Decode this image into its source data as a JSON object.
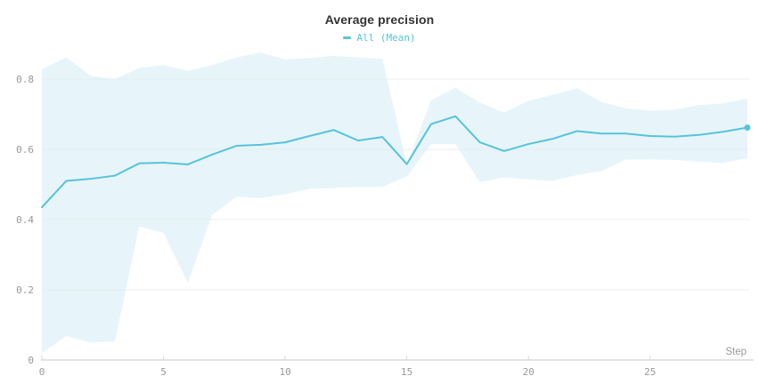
{
  "chart_data": {
    "type": "line",
    "title": "Average precision",
    "xlabel": "Step",
    "legend": [
      {
        "label": "All (Mean)"
      }
    ],
    "x": [
      0,
      1,
      2,
      3,
      4,
      5,
      6,
      7,
      8,
      9,
      10,
      11,
      12,
      13,
      14,
      15,
      16,
      17,
      18,
      19,
      20,
      21,
      22,
      23,
      24,
      25,
      26,
      27,
      28,
      29
    ],
    "series": [
      {
        "name": "All (Mean)",
        "values": [
          0.435,
          0.51,
          0.516,
          0.525,
          0.56,
          0.562,
          0.557,
          0.585,
          0.61,
          0.613,
          0.62,
          0.638,
          0.655,
          0.625,
          0.635,
          0.558,
          0.672,
          0.694,
          0.62,
          0.595,
          0.615,
          0.63,
          0.652,
          0.645,
          0.645,
          0.638,
          0.636,
          0.641,
          0.65,
          0.662
        ]
      }
    ],
    "band": {
      "name": "All (min/max range)",
      "upper": [
        0.828,
        0.862,
        0.81,
        0.8,
        0.832,
        0.84,
        0.824,
        0.84,
        0.862,
        0.876,
        0.856,
        0.86,
        0.866,
        0.862,
        0.858,
        0.557,
        0.74,
        0.776,
        0.733,
        0.705,
        0.738,
        0.756,
        0.774,
        0.735,
        0.717,
        0.71,
        0.713,
        0.726,
        0.731,
        0.745
      ],
      "lower": [
        0.02,
        0.068,
        0.05,
        0.053,
        0.38,
        0.362,
        0.22,
        0.413,
        0.465,
        0.461,
        0.472,
        0.487,
        0.49,
        0.493,
        0.493,
        0.523,
        0.615,
        0.615,
        0.506,
        0.52,
        0.515,
        0.51,
        0.527,
        0.538,
        0.571,
        0.571,
        0.57,
        0.565,
        0.561,
        0.574
      ]
    },
    "xticks": [
      {
        "value": 0,
        "label": "0"
      },
      {
        "value": 5,
        "label": "5"
      },
      {
        "value": 10,
        "label": "10"
      },
      {
        "value": 15,
        "label": "15"
      },
      {
        "value": 20,
        "label": "20"
      },
      {
        "value": 25,
        "label": "25"
      }
    ],
    "yticks": [
      {
        "value": 0,
        "label": "0"
      },
      {
        "value": 0.2,
        "label": "0.2"
      },
      {
        "value": 0.4,
        "label": "0.4"
      },
      {
        "value": 0.6,
        "label": "0.6"
      },
      {
        "value": 0.8,
        "label": "0.8"
      }
    ],
    "xlim": [
      0,
      29
    ],
    "ylim": [
      0,
      0.886
    ],
    "grid": "horizontal-only",
    "legend_position": "top-center",
    "last_point_marker": true,
    "colors": {
      "accent": "#56c3dc",
      "band_fill": "#d9eff7",
      "grid": "#ededed",
      "axis": "#e3e3e3",
      "tick": "#999999",
      "title": "#333333"
    }
  }
}
